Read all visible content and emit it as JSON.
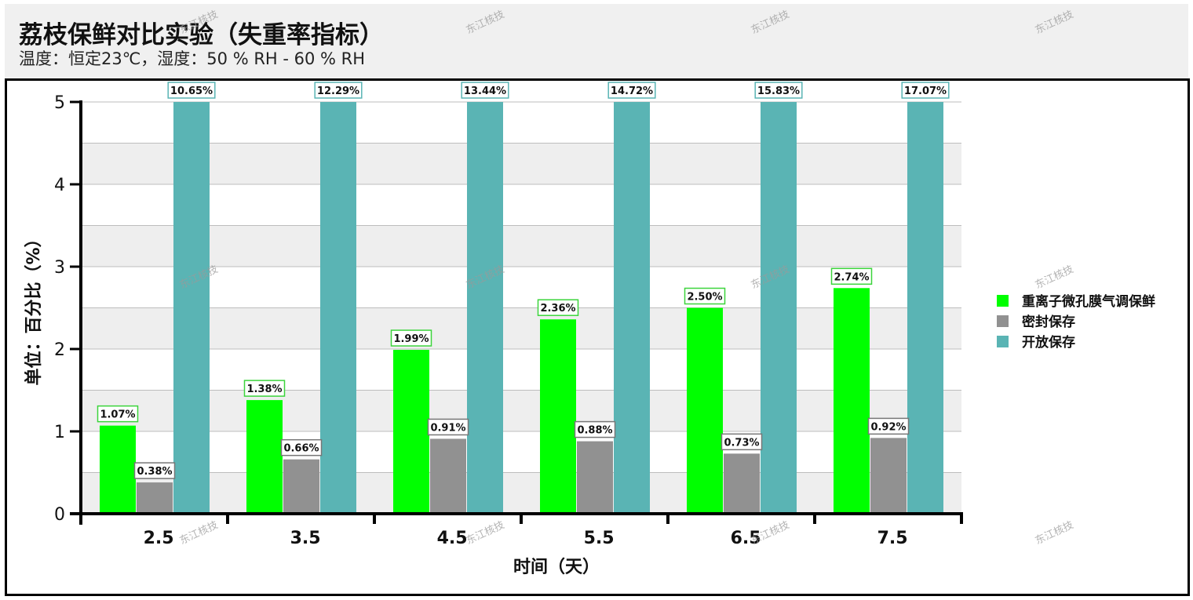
{
  "header": {
    "title": "荔枝保鲜对比实验（失重率指标）",
    "subtitle": "温度：恒定23℃，湿度：50 % RH - 60 % RH"
  },
  "watermark": "东江核技",
  "colors": {
    "header_bg": "#f0f0f0",
    "plot_band": "#eeeeee",
    "grid": "#bdbdbd",
    "axis": "#000000"
  },
  "chart_data": {
    "type": "bar",
    "title": "荔枝保鲜对比实验（失重率指标）",
    "subtitle": "温度：恒定23℃，湿度：50 % RH - 60 % RH",
    "xlabel": "时间（天）",
    "ylabel": "单位：百分比（%）",
    "categories": [
      "2.5",
      "3.5",
      "4.5",
      "5.5",
      "6.5",
      "7.5"
    ],
    "ylim": [
      0,
      5
    ],
    "yticks": [
      0,
      1,
      2,
      3,
      4,
      5
    ],
    "grid": true,
    "legend": "right",
    "series": [
      {
        "name": "重离子微孔膜气调保鲜",
        "color": "#00ff00",
        "label_border": "#3cd43c",
        "values": [
          1.07,
          1.38,
          1.99,
          2.36,
          2.5,
          2.74
        ],
        "labels": [
          "1.07%",
          "1.38%",
          "1.99%",
          "2.36%",
          "2.50%",
          "2.74%"
        ]
      },
      {
        "name": "密封保存",
        "color": "#919191",
        "label_border": "#777777",
        "values": [
          0.38,
          0.66,
          0.91,
          0.88,
          0.73,
          0.92
        ],
        "labels": [
          "0.38%",
          "0.66%",
          "0.91%",
          "0.88%",
          "0.73%",
          "0.92%"
        ]
      },
      {
        "name": "开放保存",
        "color": "#5ab4b4",
        "label_border": "#5ab4b4",
        "values": [
          10.65,
          12.29,
          13.44,
          14.72,
          15.83,
          17.07
        ],
        "labels": [
          "10.65%",
          "12.29%",
          "13.44%",
          "14.72%",
          "15.83%",
          "17.07%"
        ]
      }
    ]
  }
}
